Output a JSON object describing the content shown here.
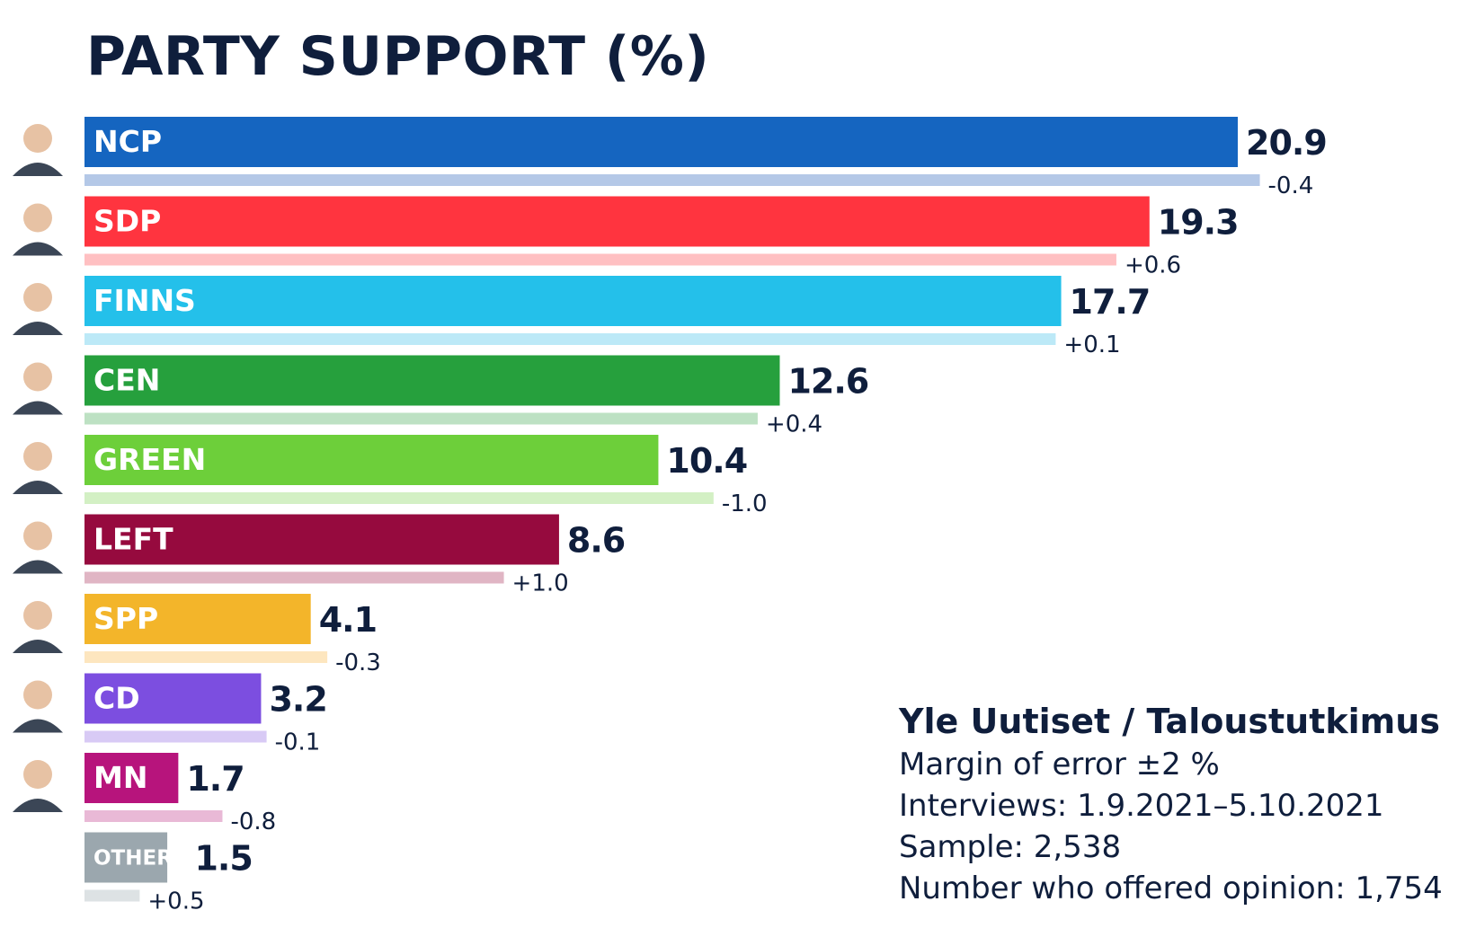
{
  "chart_data": {
    "type": "bar",
    "orientation": "horizontal",
    "title": "PARTY SUPPORT (%)",
    "categories": [
      "NCP",
      "SDP",
      "FINNS",
      "CEN",
      "GREEN",
      "LEFT",
      "SPP",
      "CD",
      "MN",
      "OTHERS"
    ],
    "values": [
      20.9,
      19.3,
      17.7,
      12.6,
      10.4,
      8.6,
      4.1,
      3.2,
      1.7,
      1.5
    ],
    "value_labels": [
      "20.9",
      "19.3",
      "17.7",
      "12.6",
      "10.4",
      "8.6",
      "4.1",
      "3.2",
      "1.7",
      "1.5"
    ],
    "change_labels": [
      "-0.4",
      "+0.6",
      "+0.1",
      "+0.4",
      "-1.0",
      "+1.0",
      "-0.3",
      "-0.1",
      "-0.8",
      "+0.5"
    ],
    "previous_values": [
      21.3,
      18.7,
      17.6,
      12.2,
      11.4,
      7.6,
      4.4,
      3.3,
      2.5,
      1.0
    ],
    "colors": [
      "#1565c0",
      "#ff343f",
      "#24c0ea",
      "#26a03d",
      "#6dcf3a",
      "#960a3e",
      "#f3b52a",
      "#7c4ee0",
      "#b7147c",
      "#9ba7ae"
    ],
    "previous_colors": [
      "#b4c8e7",
      "#ffc0c2",
      "#bce9f7",
      "#bde1c3",
      "#d3f0c4",
      "#e0b5c4",
      "#fde6bf",
      "#d8caf5",
      "#e9b9d6",
      "#dde2e4"
    ],
    "leader_portraits": [
      true,
      true,
      true,
      true,
      true,
      true,
      true,
      true,
      true,
      false
    ],
    "grid": false,
    "legend": "none"
  },
  "source": {
    "title": "Yle Uutiset / Taloustutkimus",
    "lines": [
      "Margin of error ±2 %",
      "Interviews: 1.9.2021–5.10.2021",
      "Sample: 2,538",
      "Number who offered opinion: 1,754"
    ]
  }
}
